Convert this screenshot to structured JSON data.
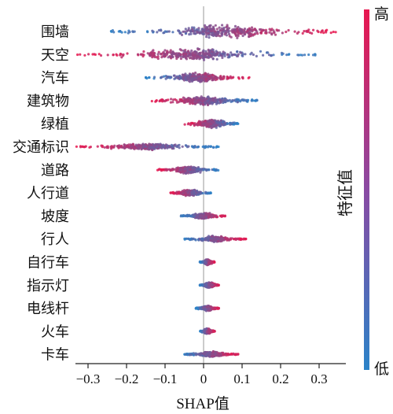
{
  "chart_data": {
    "type": "beeswarm",
    "xlabel": "SHAP值",
    "xlim": [
      -0.34,
      0.35
    ],
    "xticks": [
      -0.3,
      -0.2,
      -0.1,
      0,
      0.1,
      0.2,
      0.3
    ],
    "tick_labels": [
      "−0.3",
      "−0.2",
      "−0.1",
      "0",
      "0.1",
      "0.2",
      "0.3"
    ],
    "colorbar": {
      "label": "特征值",
      "high_label": "高",
      "low_label": "低",
      "high_color": "#e8174f",
      "low_color": "#2b83c8"
    },
    "features": [
      {
        "name": "围墙",
        "min": -0.24,
        "max": 0.35,
        "low_side": "negative",
        "spread": 1.0
      },
      {
        "name": "天空",
        "min": -0.33,
        "max": 0.29,
        "low_side": "positive",
        "spread": 1.0
      },
      {
        "name": "汽车",
        "min": -0.15,
        "max": 0.12,
        "low_side": "negative",
        "spread": 0.65
      },
      {
        "name": "建筑物",
        "min": -0.14,
        "max": 0.14,
        "low_side": "positive",
        "spread": 0.65
      },
      {
        "name": "绿植",
        "min": -0.05,
        "max": 0.09,
        "low_side": "positive",
        "spread": 0.6
      },
      {
        "name": "交通标识",
        "min": -0.33,
        "max": 0.04,
        "low_side": "positive",
        "spread": 0.45
      },
      {
        "name": "道路",
        "min": -0.12,
        "max": 0.04,
        "low_side": "positive",
        "spread": 0.45
      },
      {
        "name": "人行道",
        "min": -0.09,
        "max": 0.02,
        "low_side": "positive",
        "spread": 0.4
      },
      {
        "name": "坡度",
        "min": -0.06,
        "max": 0.06,
        "low_side": "negative",
        "spread": 0.35
      },
      {
        "name": "行人",
        "min": -0.05,
        "max": 0.11,
        "low_side": "negative",
        "spread": 0.35
      },
      {
        "name": "自行车",
        "min": -0.01,
        "max": 0.03,
        "low_side": "negative",
        "spread": 0.3
      },
      {
        "name": "指示灯",
        "min": -0.01,
        "max": 0.04,
        "low_side": "negative",
        "spread": 0.3
      },
      {
        "name": "电线杆",
        "min": -0.02,
        "max": 0.04,
        "low_side": "negative",
        "spread": 0.3
      },
      {
        "name": "火车",
        "min": -0.01,
        "max": 0.03,
        "low_side": "negative",
        "spread": 0.3
      },
      {
        "name": "卡车",
        "min": -0.05,
        "max": 0.09,
        "low_side": "negative",
        "spread": 0.3
      }
    ]
  }
}
